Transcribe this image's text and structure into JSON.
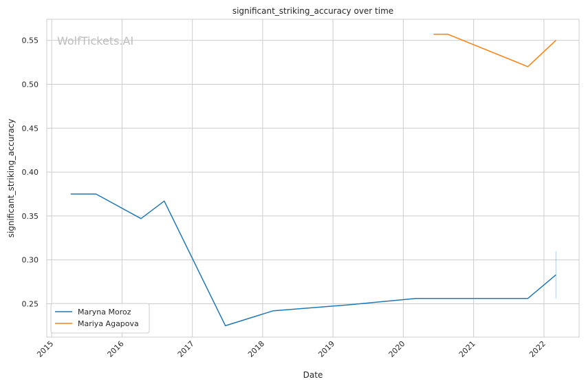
{
  "chart_data": {
    "type": "line",
    "title": "significant_striking_accuracy over time",
    "xlabel": "Date",
    "ylabel": "significant_striking_accuracy",
    "watermark": "WolfTickets.AI",
    "grid": true,
    "legend_placement": "lower-left",
    "xlim": [
      2014.93,
      2022.5
    ],
    "ylim": [
      0.212,
      0.574
    ],
    "x_ticks": [
      "2015",
      "2016",
      "2017",
      "2018",
      "2019",
      "2020",
      "2021",
      "2022"
    ],
    "y_ticks": [
      "0.25",
      "0.30",
      "0.35",
      "0.40",
      "0.45",
      "0.50",
      "0.55"
    ],
    "series": [
      {
        "name": "Maryna Moroz",
        "color": "#1f77b4",
        "x": [
          2015.27,
          2015.63,
          2016.27,
          2016.6,
          2017.47,
          2018.15,
          2019.25,
          2020.18,
          2020.7,
          2021.77,
          2022.17
        ],
        "y": [
          0.375,
          0.375,
          0.347,
          0.367,
          0.225,
          0.242,
          0.249,
          0.256,
          0.256,
          0.256,
          0.283
        ],
        "error_bar": {
          "x": 2022.17,
          "low": 0.256,
          "high": 0.31
        }
      },
      {
        "name": "Mariya Agapova",
        "color": "#ff7f0e",
        "x": [
          2020.43,
          2020.63,
          2021.77,
          2022.17
        ],
        "y": [
          0.557,
          0.557,
          0.52,
          0.55
        ]
      }
    ]
  }
}
